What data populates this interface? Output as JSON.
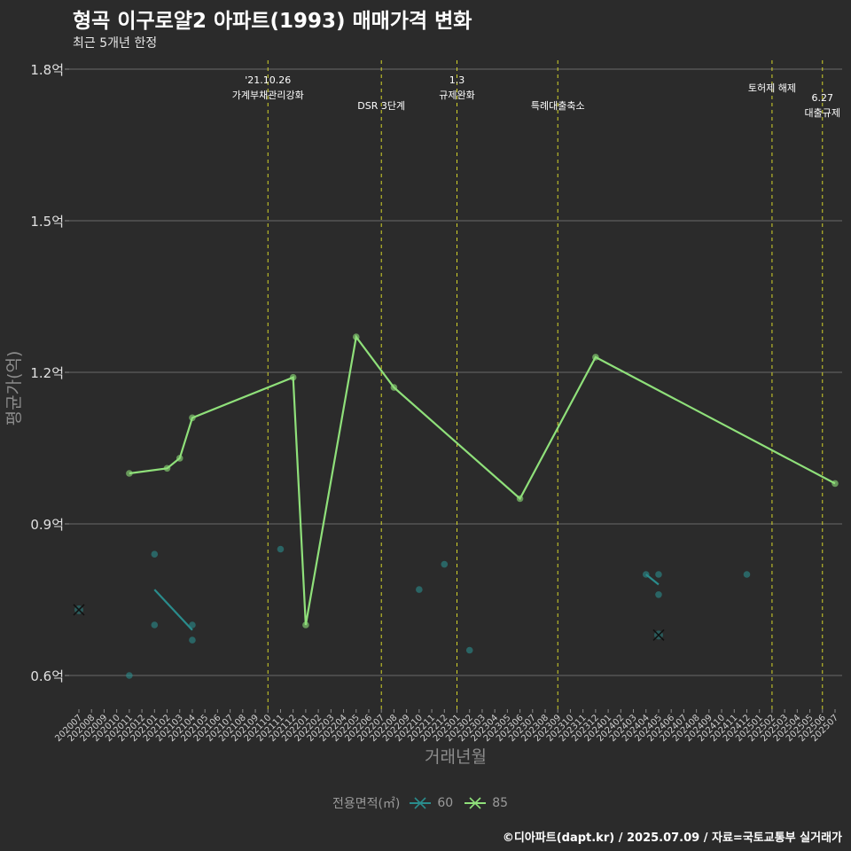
{
  "chart_data": {
    "type": "line",
    "title": "형곡 이구로얄2 아파트(1993) 매매가격 변화",
    "subtitle": "최근 5개년 한정",
    "xlabel": "거래년월",
    "ylabel": "평균가(억)",
    "ylim": [
      0.55,
      1.82
    ],
    "y_ticks": [
      0.6,
      0.9,
      1.2,
      1.5,
      1.8
    ],
    "y_tick_labels": [
      "0.6억",
      "0.9억",
      "1.2억",
      "1.5억",
      "1.8억"
    ],
    "categories": [
      "202007",
      "202008",
      "202009",
      "202010",
      "202011",
      "202012",
      "202101",
      "202102",
      "202103",
      "202104",
      "202105",
      "202106",
      "202107",
      "202108",
      "202109",
      "202110",
      "202111",
      "202112",
      "202201",
      "202202",
      "202203",
      "202204",
      "202205",
      "202206",
      "202207",
      "202208",
      "202209",
      "202210",
      "202211",
      "202212",
      "202301",
      "202302",
      "202303",
      "202304",
      "202305",
      "202306",
      "202307",
      "202308",
      "202309",
      "202310",
      "202311",
      "202312",
      "202401",
      "202402",
      "202403",
      "202404",
      "202405",
      "202406",
      "202407",
      "202408",
      "202409",
      "202410",
      "202411",
      "202412",
      "202501",
      "202502",
      "202503",
      "202504",
      "202505",
      "202506",
      "202507"
    ],
    "series": [
      {
        "name": "60",
        "color": "#2a8c8c",
        "points": [
          {
            "x": "202007",
            "y": 0.73,
            "marker": "x"
          },
          {
            "x": "202011",
            "y": 0.6
          },
          {
            "x": "202101",
            "y": 0.84
          },
          {
            "x": "202101",
            "y": 0.7
          },
          {
            "x": "202104",
            "y": 0.7
          },
          {
            "x": "202104",
            "y": 0.67
          },
          {
            "x": "202111",
            "y": 0.85
          },
          {
            "x": "202210",
            "y": 0.77
          },
          {
            "x": "202212",
            "y": 0.82
          },
          {
            "x": "202302",
            "y": 0.65
          },
          {
            "x": "202404",
            "y": 0.8
          },
          {
            "x": "202405",
            "y": 0.8
          },
          {
            "x": "202405",
            "y": 0.76
          },
          {
            "x": "202405",
            "y": 0.68,
            "marker": "x"
          },
          {
            "x": "202412",
            "y": 0.8
          }
        ],
        "line": [
          {
            "x": "202101",
            "y": 0.77
          },
          {
            "x": "202104",
            "y": 0.69
          }
        ],
        "line2": [
          {
            "x": "202404",
            "y": 0.8
          },
          {
            "x": "202405",
            "y": 0.78
          }
        ]
      },
      {
        "name": "85",
        "color": "#8fe07a",
        "points": [
          {
            "x": "202011",
            "y": 1.0
          },
          {
            "x": "202102",
            "y": 1.01
          },
          {
            "x": "202103",
            "y": 1.03
          },
          {
            "x": "202104",
            "y": 1.11
          },
          {
            "x": "202112",
            "y": 1.19
          },
          {
            "x": "202201",
            "y": 0.7
          },
          {
            "x": "202205",
            "y": 1.27
          },
          {
            "x": "202208",
            "y": 1.17
          },
          {
            "x": "202306",
            "y": 0.95
          },
          {
            "x": "202312",
            "y": 1.23
          },
          {
            "x": "202507",
            "y": 0.98
          }
        ]
      }
    ],
    "events": [
      {
        "x": "202110",
        "lines": [
          "'21.10.26",
          "가계부채관리강화"
        ],
        "level": 1
      },
      {
        "x": "202207",
        "lines": [
          "DSR 3단계"
        ],
        "level": 3
      },
      {
        "x": "202301",
        "lines": [
          "1.3",
          "규제완화"
        ],
        "level": 1
      },
      {
        "x": "202309",
        "lines": [
          "특례대출축소"
        ],
        "level": 3
      },
      {
        "x": "202502",
        "lines": [
          "토허제 해제"
        ],
        "level": 2
      },
      {
        "x": "202506",
        "lines": [
          "6.27",
          "대출규제"
        ],
        "level": 4
      }
    ],
    "legend": {
      "title": "전용면적(㎡)",
      "position": "bottom"
    },
    "caption": "©디아파트(dapt.kr) / 2025.07.09 / 자료=국토교통부 실거래가"
  }
}
